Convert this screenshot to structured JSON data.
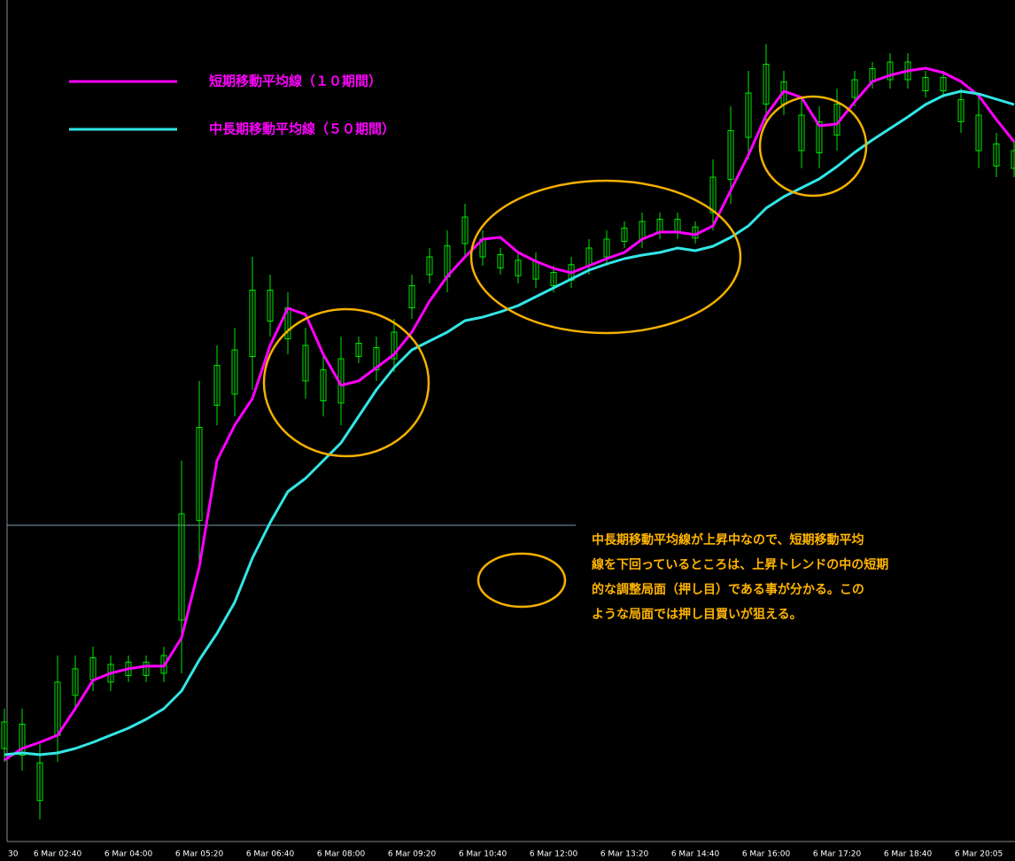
{
  "chart_data": {
    "type": "line",
    "categories": [
      "30",
      null,
      null,
      "6 Mar 02:40",
      null,
      null,
      null,
      "6 Mar 04:00",
      null,
      null,
      null,
      "6 Mar 05:20",
      null,
      null,
      null,
      "6 Mar 06:40",
      null,
      null,
      null,
      "6 Mar 08:00",
      null,
      null,
      null,
      "6 Mar 09:20",
      null,
      null,
      null,
      "6 Mar 10:40",
      null,
      null,
      null,
      "6 Mar 12:00",
      null,
      null,
      null,
      "6 Mar 13:20",
      null,
      null,
      null,
      "6 Mar 14:40",
      null,
      null,
      null,
      "6 Mar 16:00",
      null,
      null,
      null,
      "6 Mar 17:20",
      null,
      null,
      null,
      "6 Mar 18:40",
      null,
      null,
      null,
      "6 Mar 20:05",
      null,
      null
    ],
    "ylim": [
      0,
      94
    ],
    "series": [
      {
        "name": "短期移動平均線（１０期間）",
        "color": "#ff00ff",
        "values": [
          9.2,
          10.5,
          11.2,
          12,
          15,
          18.2,
          19,
          19.5,
          19.8,
          19.8,
          23,
          31,
          43,
          47,
          50,
          56,
          60.2,
          59.5,
          55,
          51.5,
          52,
          53.5,
          55,
          57.5,
          61,
          63.8,
          66,
          68,
          68.2,
          66.5,
          65.5,
          64.7,
          64.2,
          65,
          65.8,
          66.5,
          68,
          68.8,
          68.8,
          68.5,
          69.5,
          73.5,
          77.5,
          82,
          84.7,
          84,
          80.8,
          81,
          83.5,
          85.8,
          86.5,
          87,
          87.3,
          86.8,
          85.8,
          84.2,
          81.5,
          79
        ]
      },
      {
        "name": "中長期移動平均線（５０期間）",
        "color": "#33e6e6",
        "values": [
          9.8,
          10,
          9.8,
          10,
          10.5,
          11.2,
          12,
          12.8,
          13.8,
          15,
          17,
          20.5,
          23.5,
          27,
          32,
          36,
          39.5,
          41,
          43,
          45,
          48,
          51,
          53.5,
          55.5,
          56.5,
          57.5,
          58.8,
          59.2,
          59.8,
          60.5,
          61.5,
          62.5,
          63.5,
          64.5,
          65.2,
          65.8,
          66.2,
          66.5,
          67,
          66.7,
          67.2,
          68.2,
          69.5,
          71.5,
          72.8,
          73.8,
          74.8,
          76.2,
          77.8,
          79.2,
          80.5,
          81.8,
          83.2,
          84.2,
          84.7,
          84.4,
          83.8,
          83.2
        ]
      }
    ],
    "candles": {
      "color": "#00e600",
      "high": [
        15,
        15,
        11,
        21,
        21,
        22,
        21,
        21,
        21,
        22,
        43,
        52,
        56,
        58,
        66,
        64,
        62,
        58,
        55,
        57,
        57,
        57,
        59,
        64,
        67,
        69,
        72,
        69,
        67,
        66.5,
        66.5,
        65,
        66,
        68,
        69,
        70,
        71,
        71,
        71,
        70,
        77,
        83,
        87,
        90,
        87,
        84,
        83,
        85,
        87,
        88,
        89,
        89,
        87,
        87,
        85,
        84,
        80,
        79
      ],
      "low": [
        9,
        8,
        2.5,
        9,
        15,
        17,
        17,
        18,
        18,
        18,
        19,
        31,
        47,
        48,
        51,
        57,
        55,
        50,
        48,
        47,
        54,
        52,
        53,
        59,
        63,
        62,
        66,
        65,
        64,
        63,
        62.5,
        62,
        62.5,
        64,
        65,
        67,
        67,
        68,
        68,
        67.5,
        69,
        72,
        77,
        81,
        82,
        76,
        76,
        78,
        83,
        85,
        85,
        85,
        84,
        84,
        80,
        76,
        75,
        75
      ]
    },
    "annotation": [
      "中長期移動平均線が上昇中なので、短期移動平均",
      "線を下回っているところは、上昇トレンドの中の短期",
      "的な調整局面（押し目）である事が分かる。この",
      "ような局面では押し目買いが狙える。"
    ]
  }
}
